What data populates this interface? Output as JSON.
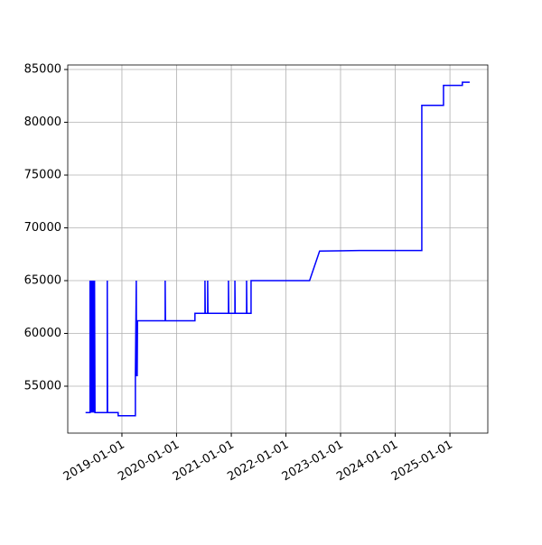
{
  "chart_data": {
    "type": "line",
    "x": [
      "2018-05-03",
      "2018-06-02",
      "2018-06-02",
      "2018-06-04",
      "2018-06-08",
      "2018-06-10",
      "2018-06-14",
      "2018-06-16",
      "2018-06-20",
      "2018-06-22",
      "2018-06-26",
      "2018-06-28",
      "2018-07-02",
      "2018-07-05",
      "2018-09-25",
      "2018-09-25",
      "2018-09-27",
      "2018-12-07",
      "2018-12-07",
      "2019-04-01",
      "2019-04-01",
      "2019-04-07",
      "2019-04-09",
      "2019-04-13",
      "2019-04-15",
      "2019-10-17",
      "2019-10-17",
      "2019-10-19",
      "2020-05-03",
      "2020-05-03",
      "2020-07-09",
      "2020-07-09",
      "2020-07-11",
      "2020-07-27",
      "2020-07-27",
      "2020-07-29",
      "2020-12-13",
      "2020-12-13",
      "2020-12-15",
      "2021-01-25",
      "2021-01-25",
      "2021-01-27",
      "2021-04-13",
      "2021-04-13",
      "2021-04-15",
      "2021-05-13",
      "2021-05-13",
      "2022-06-08",
      "2022-08-14",
      "2023-05-07",
      "2024-06-27",
      "2024-06-27",
      "2024-11-19",
      "2024-11-19",
      "2025-03-25",
      "2025-03-25",
      "2025-05-13"
    ],
    "series": [
      {
        "color": "#0000ff",
        "values": [
          52500,
          52500,
          65000,
          52500,
          65000,
          52500,
          65000,
          52500,
          65000,
          52500,
          65000,
          52500,
          65000,
          52500,
          52500,
          65000,
          52500,
          52500,
          52200,
          52200,
          56000,
          65000,
          56000,
          56000,
          61200,
          61200,
          65000,
          61200,
          61200,
          61900,
          61900,
          65000,
          61900,
          61900,
          65000,
          61900,
          61900,
          65000,
          61900,
          61900,
          65000,
          61900,
          61900,
          65000,
          61900,
          61900,
          65000,
          65000,
          67800,
          67850,
          67850,
          81600,
          81600,
          83500,
          83500,
          83800,
          83800
        ]
      }
    ],
    "xlim": [
      "2018-01-04",
      "2025-09-11"
    ],
    "xticks": [
      "2019-01-01",
      "2020-01-01",
      "2021-01-01",
      "2022-01-01",
      "2023-01-01",
      "2024-01-01",
      "2025-01-01"
    ],
    "ylim": [
      50556,
      85430
    ],
    "yticks": [
      55000,
      60000,
      65000,
      70000,
      75000,
      80000,
      85000
    ],
    "grid": true
  }
}
